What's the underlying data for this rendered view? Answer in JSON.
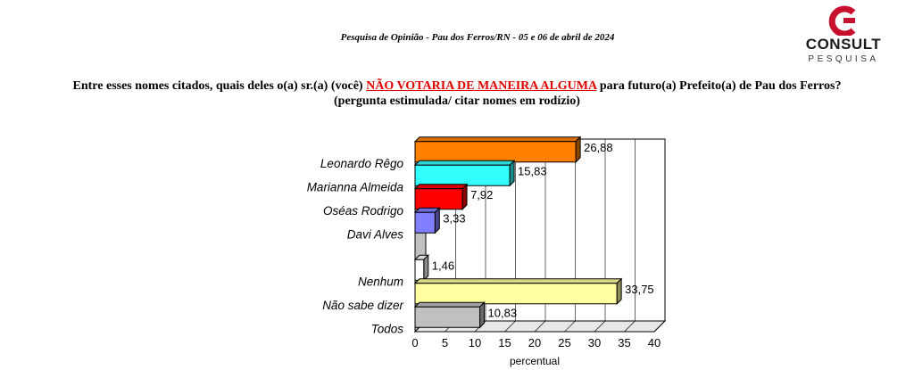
{
  "header": {
    "subtitle": "Pesquisa de Opinião  -  Pau dos Ferros/RN  -  05 e 06 de abril de 2024",
    "logo_word": "CONSULT",
    "logo_sub": "PESQUISA",
    "brand_color": "#c8102e"
  },
  "question": {
    "part1": "Entre esses nomes citados, quais deles o(a) sr.(a) (você) ",
    "highlight": "NÃO VOTARIA DE MANEIRA ALGUMA",
    "part2": " para futuro(a) Prefeito(a) de Pau dos Ferros?",
    "line2": "(pergunta estimulada/ citar nomes em rodízio)"
  },
  "chart_data": {
    "type": "bar",
    "orientation": "horizontal",
    "style": "3d",
    "categories": [
      "Leonardo Rêgo",
      "Marianna Almeida",
      "Oséas Rodrigo",
      "Davi Alves",
      "",
      "Nenhum",
      "Não sabe dizer",
      "Todos"
    ],
    "values": [
      26.88,
      15.83,
      7.92,
      3.33,
      null,
      1.46,
      33.75,
      10.83
    ],
    "value_labels": [
      "26,88",
      "15,83",
      "7,92",
      "3,33",
      "",
      "1,46",
      "33,75",
      "10,83"
    ],
    "colors": [
      "#ff8000",
      "#33ffff",
      "#ff0000",
      "#8080ff",
      "#ffffff",
      "#ffffff",
      "#ffffa0",
      "#c0c0c0"
    ],
    "xlim": [
      0,
      40
    ],
    "xticks": [
      "0",
      "5",
      "10",
      "15",
      "20",
      "25",
      "30",
      "35",
      "40"
    ],
    "xlabel": "percentual",
    "grid": true,
    "legend": "none"
  }
}
